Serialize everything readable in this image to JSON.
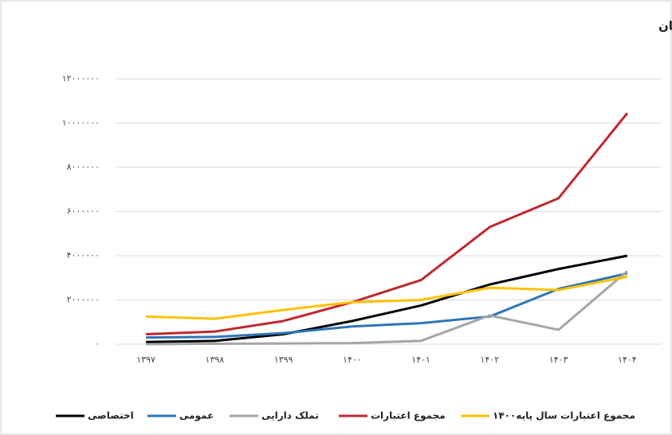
{
  "chart_data": {
    "type": "line",
    "title": "اعتبارات اختصاصی، عمومی ،تملک دارایی، مجموع جاری و مجموع سال پایه دردانشگاه فرهنگیان",
    "categories": [
      "۱۳۹۷",
      "۱۳۹۸",
      "۱۳۹۹",
      "۱۴۰۰",
      "۱۴۰۱",
      "۱۴۰۲",
      "۱۴۰۳",
      "۱۴۰۴"
    ],
    "series": [
      {
        "name": "اختصاصی",
        "color": "#000000",
        "values": [
          100000,
          150000,
          450000,
          1050000,
          1750000,
          2700000,
          3400000,
          4000000
        ]
      },
      {
        "name": "عمومی",
        "color": "#2e75b6",
        "values": [
          300000,
          330000,
          500000,
          800000,
          950000,
          1250000,
          2500000,
          3200000
        ]
      },
      {
        "name": "تملک دارایی",
        "color": "#a5a5a5",
        "values": [
          0,
          20000,
          30000,
          50000,
          150000,
          1300000,
          650000,
          3300000
        ]
      },
      {
        "name": "مجموع اعتبارات",
        "color": "#c0282d",
        "values": [
          450000,
          570000,
          1050000,
          1900000,
          2900000,
          5300000,
          6600000,
          10450000
        ]
      },
      {
        "name": "مجموع اعتبارات سال پایه۱۴۰۰",
        "color": "#ffc000",
        "values": [
          1250000,
          1150000,
          1550000,
          1900000,
          2000000,
          2550000,
          2450000,
          3050000
        ]
      }
    ],
    "ylim": [
      0,
      12000000
    ],
    "yticks": [
      {
        "value": 0,
        "label": "۰"
      },
      {
        "value": 2000000,
        "label": "۲۰۰۰۰۰۰"
      },
      {
        "value": 4000000,
        "label": "۴۰۰۰۰۰۰"
      },
      {
        "value": 6000000,
        "label": "۶۰۰۰۰۰۰"
      },
      {
        "value": 8000000,
        "label": "۸۰۰۰۰۰۰"
      },
      {
        "value": 10000000,
        "label": "۱۰۰۰۰۰۰۰"
      },
      {
        "value": 12000000,
        "label": "۱۲۰۰۰۰۰۰"
      }
    ],
    "grid": true,
    "legend": "bottom"
  }
}
